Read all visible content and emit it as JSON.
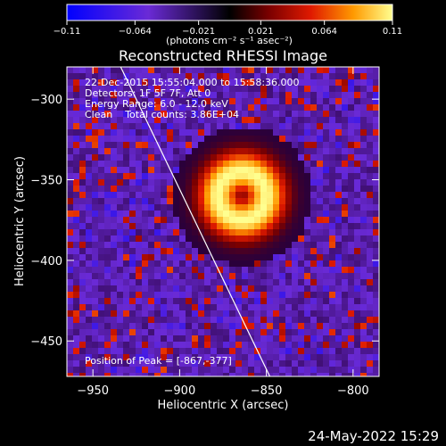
{
  "colorbar": {
    "ticks": [
      "−0.11",
      "−0.064",
      "−0.021",
      "0.021",
      "0.064",
      "0.11"
    ],
    "tick_values": [
      -0.11,
      -0.064,
      -0.021,
      0.021,
      0.064,
      0.11
    ],
    "unit_label": "(photons cm⁻² s⁻¹ asec⁻²)",
    "range": [
      -0.11,
      0.11
    ]
  },
  "header": {
    "info_lines": [
      "22-Dec-2015 15:55:04.000 to 15:58:36.000",
      "Detectors: 1F 5F 7F, Att 0",
      "Energy Range: 6.0 - 12.0 keV",
      "Clean    Total counts: 3.86E+04"
    ],
    "peak_label": "Position of Peak = [-867,-377]"
  },
  "footer": {
    "timestamp": "24-May-2022 15:29"
  },
  "chart_data": {
    "type": "heatmap",
    "title": "Reconstructed RHESSI Image",
    "xlabel": "Heliocentric X (arcsec)",
    "ylabel": "Heliocentric Y (arcsec)",
    "xlim": [
      -965,
      -785
    ],
    "ylim": [
      -472,
      -280
    ],
    "x_ticks": [
      -950,
      -900,
      -850,
      -800
    ],
    "y_ticks": [
      -300,
      -350,
      -400,
      -450
    ],
    "x_tick_labels": [
      "−950",
      "−900",
      "−850",
      "−800"
    ],
    "y_tick_labels": [
      "−300",
      "−350",
      "−400",
      "−450"
    ],
    "peak_position": [
      -867,
      -377
    ],
    "source": {
      "center": [
        -864,
        -360
      ],
      "ring_radius": 14,
      "ring_width": 11,
      "peak_value": 0.11
    },
    "limb_line": {
      "x": [
        -934,
        -848
      ],
      "y": [
        -280,
        -472
      ]
    },
    "grid": false,
    "colormap": "rhessi-blue-purple-red-yellow"
  }
}
